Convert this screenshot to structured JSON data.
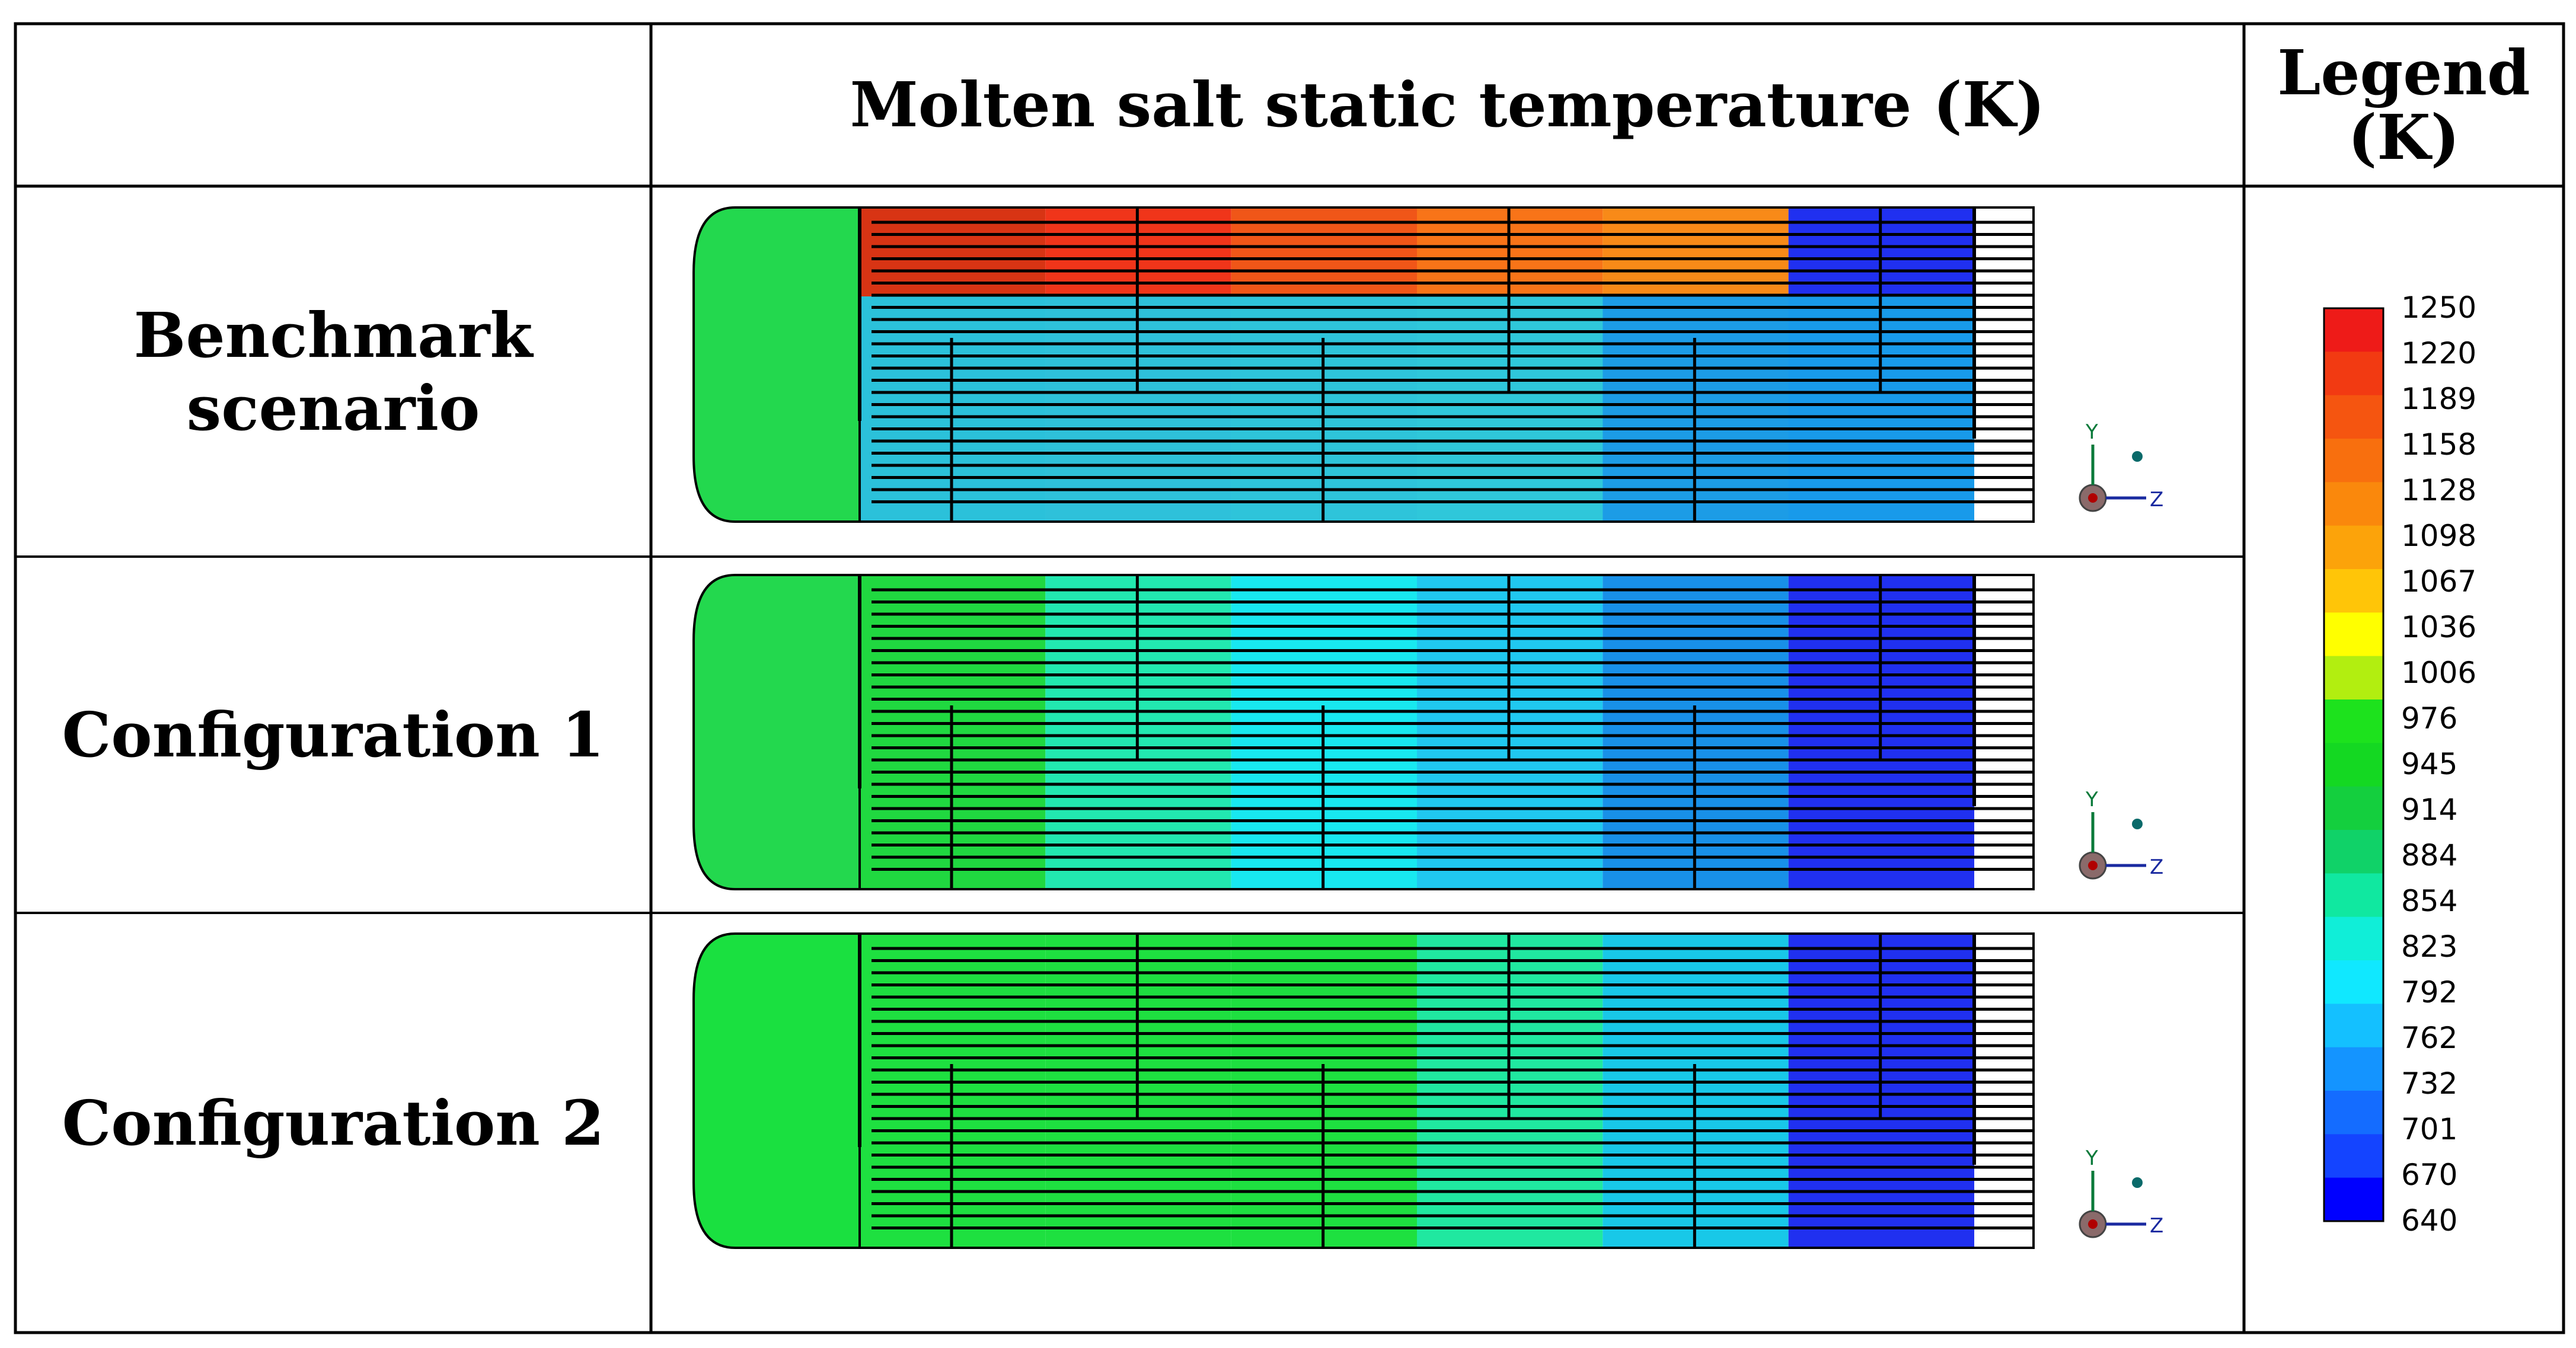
{
  "table": {
    "header": {
      "corner": "",
      "main_title": "Molten salt static temperature (K)",
      "legend_title_line1": "Legend",
      "legend_title_line2": "(K)"
    },
    "rows": [
      {
        "label": "Benchmark scenario",
        "zones": [
          "#23d84e",
          "#d83414",
          "#f0351a",
          "#f05618",
          "#f87418",
          "#f88a18",
          "#2030f0"
        ]
      },
      {
        "label": "Configuration 1",
        "zones": [
          "#23d84e",
          "#20d840",
          "#22e8b0",
          "#18e8f0",
          "#20c8f0",
          "#1890e8",
          "#2030f0"
        ]
      },
      {
        "label": "Configuration 2",
        "zones": [
          "#1ae040",
          "#1ee040",
          "#1ee040",
          "#1ee040",
          "#20e8a0",
          "#18c8e8",
          "#2030f0"
        ]
      }
    ]
  },
  "legend": {
    "unit": "K",
    "ticks": [
      "1250",
      "1220",
      "1189",
      "1158",
      "1128",
      "1098",
      "1067",
      "1036",
      "1006",
      "976",
      "945",
      "914",
      "884",
      "854",
      "823",
      "792",
      "762",
      "732",
      "701",
      "670",
      "640"
    ],
    "colors": [
      "#ee1b18",
      "#f23a12",
      "#f55510",
      "#f86f0e",
      "#fa880c",
      "#fca30a",
      "#ffc508",
      "#ffff00",
      "#b2ee10",
      "#1de21d",
      "#14d822",
      "#14cf3e",
      "#10d268",
      "#10e8a0",
      "#10eed8",
      "#10e8ff",
      "#14c0ff",
      "#1494ff",
      "#146cff",
      "#1444ff",
      "#0000ff"
    ]
  },
  "axes_triad": {
    "y_label": "Y",
    "z_label": "Z"
  }
}
